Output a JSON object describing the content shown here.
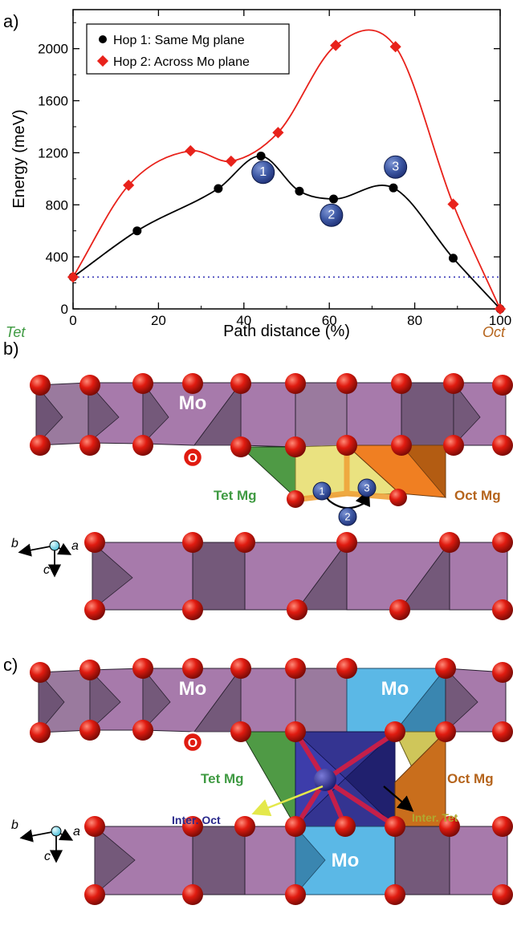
{
  "panels": {
    "a": "a)",
    "b": "b)",
    "c": "c)"
  },
  "chart_data": {
    "type": "line",
    "xlabel": "Path distance (%)",
    "ylabel": "Energy (meV)",
    "xlim": [
      0,
      100
    ],
    "ylim": [
      0,
      2300
    ],
    "xticks": [
      0,
      20,
      40,
      60,
      80,
      100
    ],
    "yticks": [
      0,
      400,
      800,
      1200,
      1600,
      2000
    ],
    "x_start_label": "Tet",
    "x_end_label": "Oct",
    "legend_position": "top-left",
    "reference_line": {
      "y": 245,
      "style": "dotted",
      "color": "#3b3bb8"
    },
    "series": [
      {
        "name": "Hop 1: Same Mg plane",
        "color": "#000000",
        "marker": "circle",
        "x": [
          0,
          15,
          34,
          44,
          53,
          61,
          75,
          89,
          100
        ],
        "y": [
          245,
          600,
          925,
          1175,
          905,
          845,
          930,
          390,
          0
        ]
      },
      {
        "name": "Hop 2: Across Mo plane",
        "color": "#e8221b",
        "marker": "diamond",
        "x": [
          0,
          13,
          27.5,
          37,
          48,
          61.5,
          75.5,
          89,
          100
        ],
        "y": [
          245,
          950,
          1215,
          1135,
          1355,
          2025,
          2015,
          805,
          0
        ]
      }
    ],
    "annotations": [
      {
        "label": "1",
        "x": 44.5,
        "y": 1050
      },
      {
        "label": "2",
        "x": 60.5,
        "y": 720
      },
      {
        "label": "3",
        "x": 75.5,
        "y": 1090
      }
    ]
  },
  "panel_b": {
    "mo_label": "Mo",
    "o_label": "O",
    "tet_label": "Tet Mg",
    "oct_label": "Oct Mg",
    "path_points": [
      "1",
      "2",
      "3"
    ],
    "axes": {
      "b": "b",
      "a": "a",
      "c": "c"
    }
  },
  "panel_c": {
    "mo_label_left": "Mo",
    "mo_label_right": "Mo",
    "mo_label_bottom": "Mo",
    "o_label": "O",
    "tet_label": "Tet Mg",
    "oct_label": "Oct Mg",
    "inter_oct_label": "Inter. Oct",
    "inter_tet_label": "Inter. Tet",
    "axes": {
      "b": "b",
      "a": "a",
      "c": "c"
    }
  },
  "colors": {
    "octahedron": "#a77aab",
    "octahedron_dark": "#74597a",
    "oxygen": "#e01b10",
    "tet_mg": "#4f9a45",
    "oct_mg": "#f07f22",
    "path_region": "#e9e17a",
    "interstitial_oct": "#2a2a8c",
    "interstitial_mo": "#5bb8e6",
    "marker_blue": "#3f5aa6"
  }
}
